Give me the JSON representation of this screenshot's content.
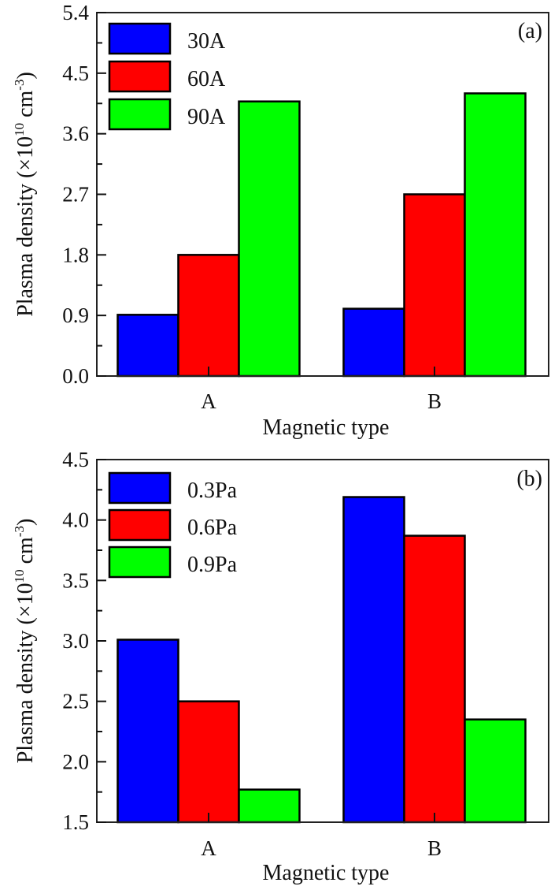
{
  "chart_data": [
    {
      "type": "bar",
      "panel_label": "(a)",
      "categories": [
        "A",
        "B"
      ],
      "series": [
        {
          "name": "30A",
          "color": "#0000ff",
          "values": [
            0.91,
            1.0
          ]
        },
        {
          "name": "60A",
          "color": "#ff0000",
          "values": [
            1.8,
            2.7
          ]
        },
        {
          "name": "90A",
          "color": "#00ff00",
          "values": [
            4.08,
            4.2
          ]
        }
      ],
      "xlabel": "Magnetic type",
      "ylabel": {
        "main": "Plasma density (×10",
        "exp1": "10",
        "mid": " cm",
        "exp2": "-3",
        "end": ")"
      },
      "ylim": [
        0.0,
        5.4
      ],
      "yticks": [
        "0.0",
        "0.9",
        "1.8",
        "2.7",
        "3.6",
        "4.5",
        "5.4"
      ],
      "ytick_values": [
        0.0,
        0.9,
        1.8,
        2.7,
        3.6,
        4.5,
        5.4
      ],
      "minor_step": 0.45,
      "legend": "top-left",
      "grid": false
    },
    {
      "type": "bar",
      "panel_label": "(b)",
      "categories": [
        "A",
        "B"
      ],
      "series": [
        {
          "name": "0.3Pa",
          "color": "#0000ff",
          "values": [
            3.01,
            4.19
          ]
        },
        {
          "name": "0.6Pa",
          "color": "#ff0000",
          "values": [
            2.5,
            3.87
          ]
        },
        {
          "name": "0.9Pa",
          "color": "#00ff00",
          "values": [
            1.77,
            2.35
          ]
        }
      ],
      "xlabel": "Magnetic type",
      "ylabel": {
        "main": "Plasma density (×10",
        "exp1": "10",
        "mid": " cm",
        "exp2": "-3",
        "end": ")"
      },
      "ylim": [
        1.5,
        4.5
      ],
      "yticks": [
        "1.5",
        "2.0",
        "2.5",
        "3.0",
        "3.5",
        "4.0",
        "4.5"
      ],
      "ytick_values": [
        1.5,
        2.0,
        2.5,
        3.0,
        3.5,
        4.0,
        4.5
      ],
      "minor_step": 0.25,
      "legend": "top-left",
      "grid": false
    }
  ]
}
